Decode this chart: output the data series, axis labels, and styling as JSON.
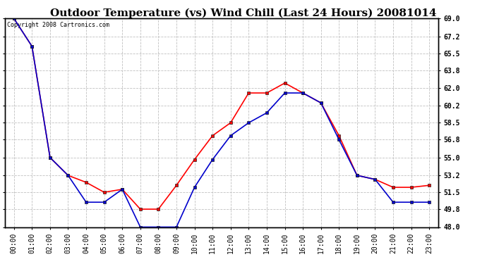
{
  "title": "Outdoor Temperature (vs) Wind Chill (Last 24 Hours) 20081014",
  "copyright_text": "Copyright 2008 Cartronics.com",
  "x_labels": [
    "00:00",
    "01:00",
    "02:00",
    "03:00",
    "04:00",
    "05:00",
    "06:00",
    "07:00",
    "08:00",
    "09:00",
    "10:00",
    "11:00",
    "12:00",
    "13:00",
    "14:00",
    "15:00",
    "16:00",
    "17:00",
    "18:00",
    "19:00",
    "20:00",
    "21:00",
    "22:00",
    "23:00"
  ],
  "temp_data": [
    69.0,
    66.2,
    55.0,
    53.2,
    52.5,
    51.5,
    51.8,
    49.8,
    49.8,
    52.2,
    54.8,
    57.2,
    58.5,
    61.5,
    61.5,
    62.5,
    61.5,
    60.5,
    57.2,
    53.2,
    52.8,
    52.0,
    52.0,
    52.2
  ],
  "windchill_data": [
    69.0,
    66.2,
    55.0,
    53.2,
    50.5,
    50.5,
    51.8,
    48.0,
    48.0,
    48.0,
    52.0,
    54.8,
    57.2,
    58.5,
    59.5,
    61.5,
    61.5,
    60.5,
    56.8,
    53.2,
    52.8,
    50.5,
    50.5,
    50.5
  ],
  "temp_color": "#ff0000",
  "windchill_color": "#0000cc",
  "marker": "s",
  "marker_size": 2.5,
  "ylim": [
    48.0,
    69.0
  ],
  "yticks": [
    48.0,
    49.8,
    51.5,
    53.2,
    55.0,
    56.8,
    58.5,
    60.2,
    62.0,
    63.8,
    65.5,
    67.2,
    69.0
  ],
  "background_color": "#ffffff",
  "plot_bg_color": "#ffffff",
  "grid_color": "#c0c0c0",
  "title_fontsize": 11,
  "tick_fontsize": 7,
  "line_width": 1.2
}
